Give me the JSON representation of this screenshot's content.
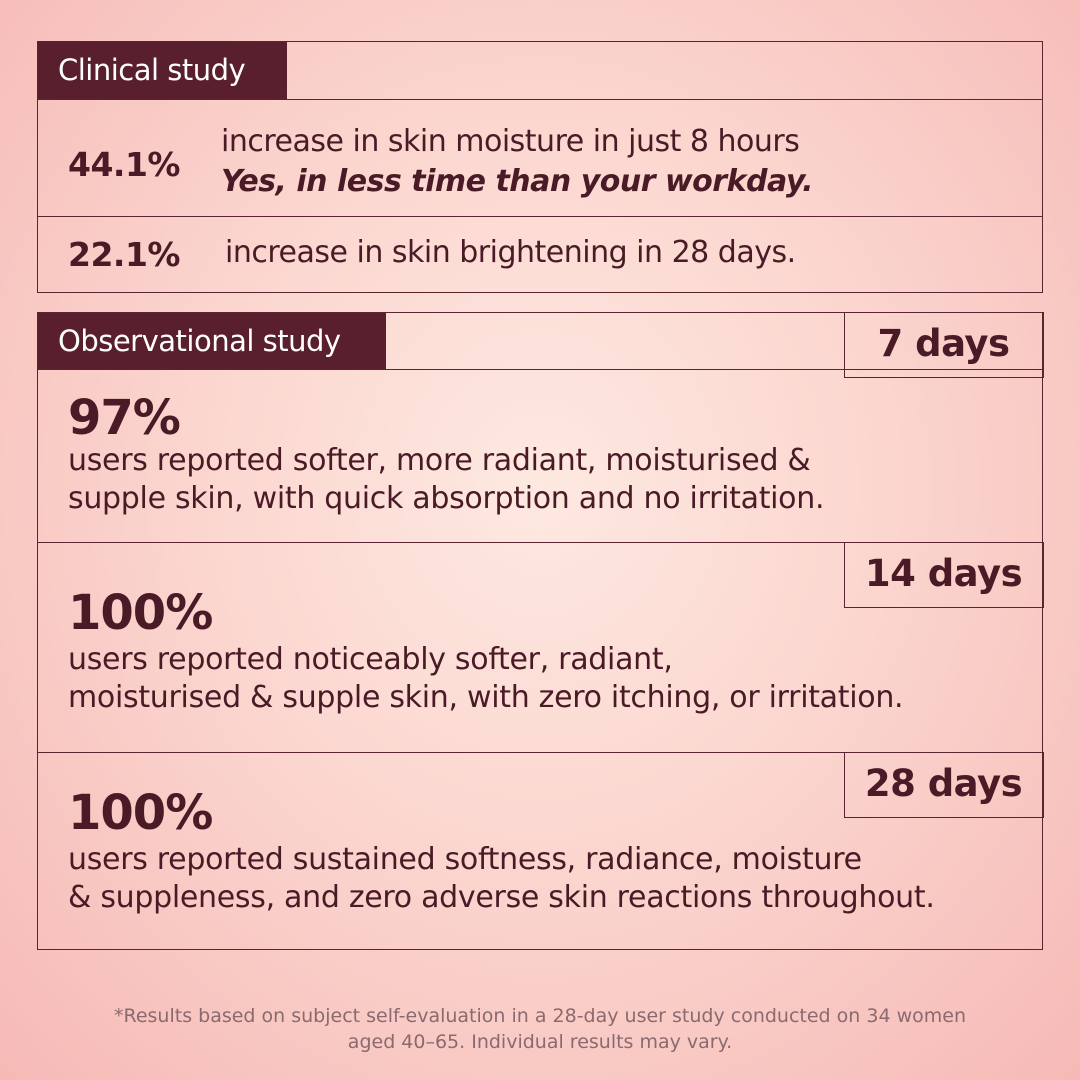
{
  "clinical": {
    "tag": "Clinical study",
    "rows": [
      {
        "pct": "44.1%",
        "text": "increase in skin moisture in just 8 hours",
        "emph": "Yes, in less time than your workday."
      },
      {
        "pct": "22.1%",
        "text": "increase in skin brightening in 28 days."
      }
    ]
  },
  "observational": {
    "tag": "Observational study",
    "rows": [
      {
        "days": "7 days",
        "pct": "97%",
        "line1": "users reported softer, more radiant, moisturised &",
        "line2": "supple skin, with quick absorption and no irritation."
      },
      {
        "days": "14 days",
        "pct": "100%",
        "line1": "users reported noticeably softer, radiant,",
        "line2": "moisturised & supple skin, with zero itching, or irritation."
      },
      {
        "days": "28 days",
        "pct": "100%",
        "line1": "users reported sustained softness, radiance, moisture",
        "line2": "& suppleness, and zero adverse skin reactions throughout."
      }
    ]
  },
  "footnote": {
    "line1": "*Results based on subject self-evaluation in a 28-day user study conducted on 34 women",
    "line2": "aged 40–65. Individual results may vary."
  },
  "colors": {
    "accent": "#5a1f2c",
    "text": "#4a1a26",
    "background": "#fbd6cf"
  }
}
